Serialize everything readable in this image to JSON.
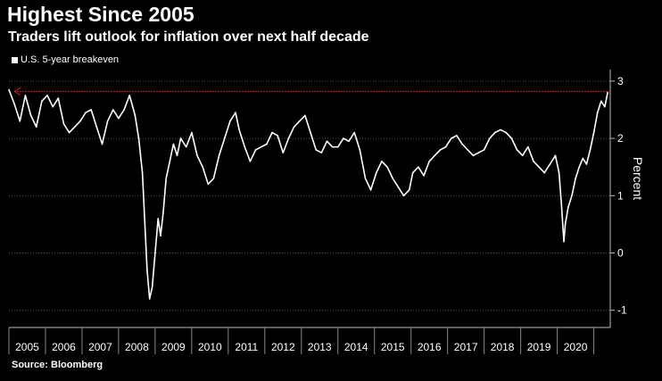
{
  "chart_data": {
    "type": "line",
    "title": "Highest Since 2005",
    "subtitle": "Traders lift outlook for inflation over next half decade",
    "legend": [
      "U.S. 5-year breakeven"
    ],
    "ylabel": "Percent",
    "xlabel": "",
    "source": "Source: Bloomberg",
    "ylim": [
      -1.3,
      3.2
    ],
    "xlim": [
      2005.0,
      2021.45
    ],
    "yticks": [
      3,
      2,
      1,
      0,
      -1
    ],
    "xtick_labels": [
      "2005",
      "2006",
      "2007",
      "2008",
      "2009",
      "2010",
      "2011",
      "2012",
      "2013",
      "2014",
      "2015",
      "2016",
      "2017",
      "2018",
      "2019",
      "2020"
    ],
    "reference_line": {
      "value": 2.82,
      "color": "#cc2222"
    },
    "series": [
      {
        "name": "U.S. 5-year breakeven",
        "color": "#ffffff",
        "x": [
          2005.0,
          2005.15,
          2005.3,
          2005.45,
          2005.6,
          2005.75,
          2005.9,
          2006.05,
          2006.2,
          2006.35,
          2006.5,
          2006.65,
          2006.8,
          2006.95,
          2007.1,
          2007.25,
          2007.4,
          2007.55,
          2007.7,
          2007.85,
          2008.0,
          2008.15,
          2008.3,
          2008.45,
          2008.55,
          2008.65,
          2008.72,
          2008.78,
          2008.85,
          2008.92,
          2009.0,
          2009.08,
          2009.15,
          2009.22,
          2009.3,
          2009.4,
          2009.5,
          2009.6,
          2009.7,
          2009.85,
          2010.0,
          2010.15,
          2010.3,
          2010.45,
          2010.6,
          2010.75,
          2010.9,
          2011.05,
          2011.2,
          2011.3,
          2011.45,
          2011.6,
          2011.75,
          2011.9,
          2012.05,
          2012.2,
          2012.35,
          2012.5,
          2012.65,
          2012.8,
          2012.95,
          2013.1,
          2013.25,
          2013.4,
          2013.55,
          2013.7,
          2013.85,
          2014.0,
          2014.15,
          2014.3,
          2014.45,
          2014.6,
          2014.75,
          2014.9,
          2015.05,
          2015.2,
          2015.35,
          2015.5,
          2015.65,
          2015.8,
          2015.95,
          2016.05,
          2016.2,
          2016.35,
          2016.5,
          2016.65,
          2016.8,
          2016.95,
          2017.1,
          2017.25,
          2017.4,
          2017.55,
          2017.7,
          2017.85,
          2018.0,
          2018.15,
          2018.3,
          2018.45,
          2018.6,
          2018.75,
          2018.9,
          2019.05,
          2019.2,
          2019.35,
          2019.5,
          2019.65,
          2019.8,
          2019.95,
          2020.05,
          2020.12,
          2020.18,
          2020.22,
          2020.3,
          2020.4,
          2020.5,
          2020.6,
          2020.7,
          2020.8,
          2020.9,
          2021.0,
          2021.1,
          2021.2,
          2021.3,
          2021.38
        ],
        "values": [
          2.85,
          2.6,
          2.3,
          2.75,
          2.4,
          2.2,
          2.65,
          2.75,
          2.55,
          2.7,
          2.25,
          2.1,
          2.2,
          2.3,
          2.45,
          2.5,
          2.2,
          1.9,
          2.3,
          2.5,
          2.35,
          2.5,
          2.75,
          2.4,
          2.0,
          1.4,
          0.5,
          -0.3,
          -0.8,
          -0.6,
          0.0,
          0.6,
          0.3,
          0.7,
          1.3,
          1.6,
          1.9,
          1.7,
          2.0,
          1.85,
          2.1,
          1.7,
          1.5,
          1.2,
          1.3,
          1.7,
          2.0,
          2.3,
          2.45,
          2.15,
          1.85,
          1.6,
          1.8,
          1.85,
          1.9,
          2.1,
          2.05,
          1.75,
          2.0,
          2.2,
          2.3,
          2.4,
          2.1,
          1.8,
          1.75,
          1.95,
          1.85,
          1.85,
          2.0,
          1.95,
          2.1,
          1.8,
          1.3,
          1.1,
          1.4,
          1.6,
          1.5,
          1.3,
          1.15,
          1.0,
          1.1,
          1.4,
          1.5,
          1.35,
          1.6,
          1.7,
          1.8,
          1.85,
          2.0,
          2.05,
          1.9,
          1.8,
          1.7,
          1.75,
          1.8,
          2.0,
          2.1,
          2.15,
          2.1,
          2.0,
          1.8,
          1.7,
          1.85,
          1.6,
          1.5,
          1.4,
          1.55,
          1.7,
          1.4,
          0.8,
          0.2,
          0.5,
          0.8,
          1.0,
          1.3,
          1.5,
          1.65,
          1.55,
          1.8,
          2.1,
          2.45,
          2.65,
          2.55,
          2.8
        ]
      }
    ]
  }
}
